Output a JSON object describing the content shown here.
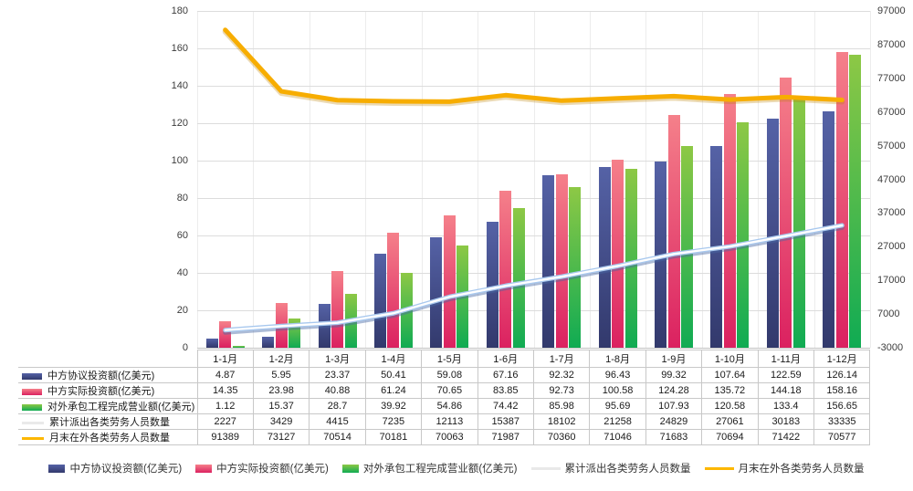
{
  "chart_data": {
    "type": "bar",
    "subtype": "grouped-bars-with-lines-combo",
    "title": "",
    "categories": [
      "1-1月",
      "1-2月",
      "1-3月",
      "1-4月",
      "1-5月",
      "1-6月",
      "1-7月",
      "1-8月",
      "1-9月",
      "1-10月",
      "1-11月",
      "1-12月"
    ],
    "series": [
      {
        "name": "中方协议投资额(亿美元)",
        "type": "bar",
        "axis": "left",
        "colors": {
          "top": "#5562A6",
          "bottom": "#32396C"
        },
        "values": [
          4.87,
          5.95,
          23.37,
          50.41,
          59.08,
          67.16,
          92.32,
          96.43,
          99.32,
          107.64,
          122.59,
          126.14
        ]
      },
      {
        "name": "中方实际投资额(亿美元)",
        "type": "bar",
        "axis": "left",
        "colors": {
          "top": "#F5808A",
          "bottom": "#DB2160"
        },
        "values": [
          14.35,
          23.98,
          40.88,
          61.24,
          70.65,
          83.85,
          92.73,
          100.58,
          124.28,
          135.72,
          144.18,
          158.16
        ]
      },
      {
        "name": "对外承包工程完成营业额(亿美元)",
        "type": "bar",
        "axis": "left",
        "colors": {
          "top": "#8DC845",
          "bottom": "#10AB53"
        },
        "values": [
          1.12,
          15.37,
          28.7,
          39.92,
          54.86,
          74.42,
          85.98,
          95.69,
          107.93,
          120.58,
          133.4,
          156.65
        ]
      },
      {
        "name": "累计派出各类劳务人员数量",
        "type": "line",
        "axis": "right",
        "colors": {
          "core": "#FFFFFF",
          "edge": "#A8C8EE",
          "shadow": "rgba(70,105,165,0.45)",
          "legend": "#E9E9E9"
        },
        "values": [
          2227,
          3429,
          4415,
          7235,
          12113,
          15387,
          18102,
          21258,
          24829,
          27061,
          30183,
          33335
        ]
      },
      {
        "name": "月末在外各类劳务人员数量",
        "type": "line",
        "axis": "right",
        "colors": {
          "core": "#F7AD00",
          "shadow": "rgba(190,130,0,0.3)",
          "legend": "#FDB700"
        },
        "values": [
          91389,
          73127,
          70514,
          70181,
          70063,
          71987,
          70360,
          71046,
          71683,
          70694,
          71422,
          70577
        ]
      }
    ],
    "left_axis": {
      "min": 0,
      "max": 180,
      "step": 20,
      "ticks": [
        180,
        160,
        140,
        120,
        100,
        80,
        60,
        40,
        20,
        0
      ]
    },
    "right_axis": {
      "min": -3000,
      "max": 97000,
      "step": 10000,
      "ticks": [
        97000,
        87000,
        77000,
        67000,
        57000,
        47000,
        37000,
        27000,
        17000,
        7000,
        -3000
      ]
    },
    "grid": true,
    "legend_position": "bottom",
    "data_table_shown": true
  }
}
